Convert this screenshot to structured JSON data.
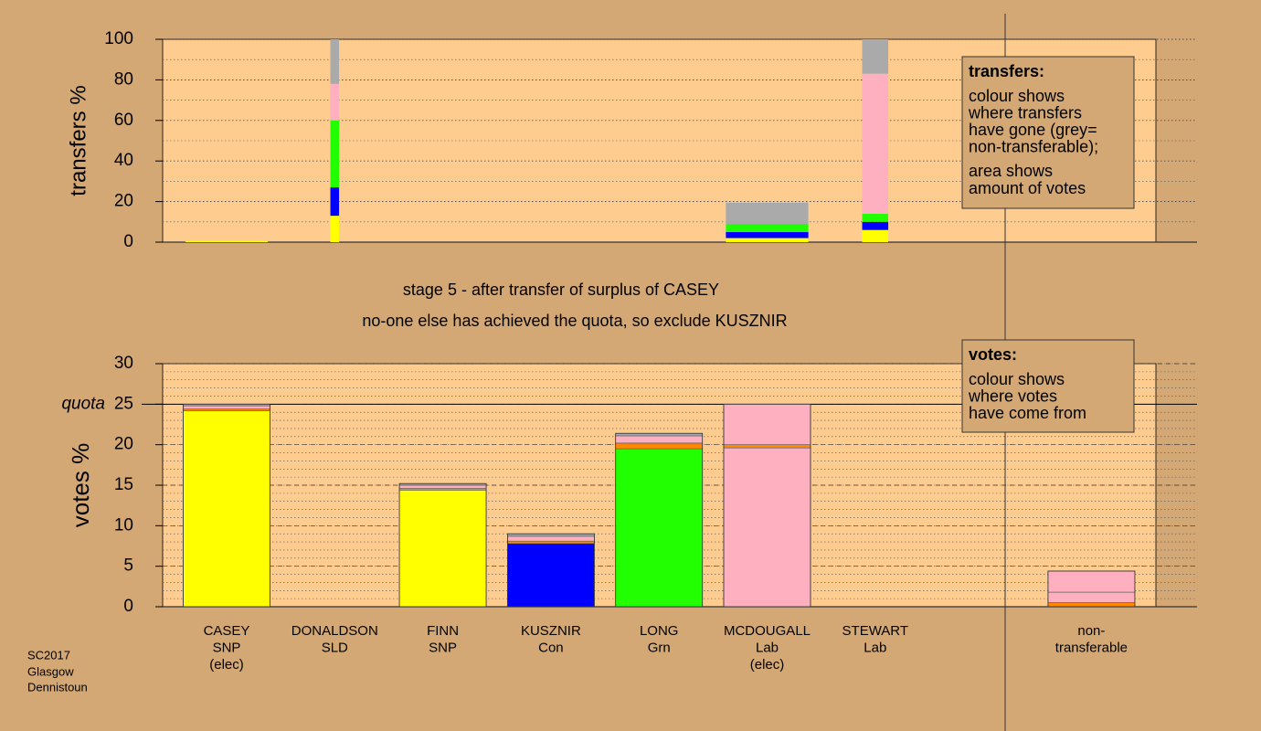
{
  "chart_data": [
    {
      "type": "stacked-bar",
      "ylabel": "transfers %",
      "ylim": [
        0,
        100
      ],
      "yticks": [
        0,
        20,
        40,
        60,
        80,
        100
      ],
      "grid_yticks": [
        0,
        10,
        20,
        30,
        40,
        50,
        60,
        70,
        80,
        90,
        100
      ],
      "widths": [
        0.95,
        0.1,
        0,
        0,
        0,
        0.95,
        0.3
      ],
      "segments": [
        [
          {
            "color": "#ffff00",
            "value": 0.5
          }
        ],
        [
          {
            "color": "#ffff00",
            "value": 13
          },
          {
            "color": "#0000ff",
            "value": 14
          },
          {
            "color": "#22ff00",
            "value": 33
          },
          {
            "color": "#ffb0c0",
            "value": 18
          },
          {
            "color": "#aaaaaa",
            "value": 22
          }
        ],
        [],
        [],
        [],
        [
          {
            "color": "#ffff00",
            "value": 2
          },
          {
            "color": "#0000ff",
            "value": 3
          },
          {
            "color": "#22ff00",
            "value": 4
          },
          {
            "color": "#aaaaaa",
            "value": 10.5
          }
        ],
        [
          {
            "color": "#ffff00",
            "value": 6
          },
          {
            "color": "#0000ff",
            "value": 4
          },
          {
            "color": "#22ff00",
            "value": 4
          },
          {
            "color": "#ffb0c0",
            "value": 69
          },
          {
            "color": "#aaaaaa",
            "value": 17
          }
        ]
      ],
      "note": {
        "title": "transfers:",
        "lines": [
          "colour shows",
          "where transfers",
          "have gone (grey=",
          "non-transferable);",
          "area shows",
          "amount of votes"
        ]
      }
    },
    {
      "type": "stacked-bar",
      "title": "stage 5 - after transfer of surplus of CASEY",
      "subtitle": "no-one else has achieved the quota, so exclude KUSZNIR",
      "ylabel": "votes %",
      "ylim": [
        0,
        30
      ],
      "yticks": [
        0,
        5,
        10,
        15,
        20,
        25,
        30
      ],
      "grid_yticks": [
        0,
        1,
        2,
        3,
        4,
        5,
        6,
        7,
        8,
        9,
        10,
        11,
        12,
        13,
        14,
        15,
        16,
        17,
        18,
        19,
        20,
        21,
        22,
        23,
        24,
        25,
        26,
        27,
        28,
        29,
        30
      ],
      "quota": {
        "value": 25,
        "label": "quota"
      },
      "categories": [
        [
          "CASEY",
          "SNP",
          "(elec)"
        ],
        [
          "DONALDSON",
          "SLD"
        ],
        [
          "FINN",
          "SNP"
        ],
        [
          "KUSZNIR",
          "Con"
        ],
        [
          "LONG",
          "Grn"
        ],
        [
          "MCDOUGALL",
          "Lab",
          "(elec)"
        ],
        [
          "STEWART",
          "Lab"
        ],
        null,
        [
          "non-",
          "transferable"
        ]
      ],
      "segments": [
        [
          {
            "color": "#ffff00",
            "value": 24.2
          },
          {
            "color": "#ff8800",
            "value": 0.2
          },
          {
            "color": "#ffb0c0",
            "value": 0.4
          },
          {
            "color": "#aaaaaa",
            "value": 0.2
          }
        ],
        [],
        [
          {
            "color": "#ffff00",
            "value": 14.4
          },
          {
            "color": "#ff8800",
            "value": 0.2
          },
          {
            "color": "#ffb0c0",
            "value": 0.4
          },
          {
            "color": "#aaaaaa",
            "value": 0.2
          }
        ],
        [
          {
            "color": "#0000ff",
            "value": 7.8
          },
          {
            "color": "#ff8800",
            "value": 0.3
          },
          {
            "color": "#ffb0c0",
            "value": 0.6
          },
          {
            "color": "#aaaaaa",
            "value": 0.3
          }
        ],
        [
          {
            "color": "#22ff00",
            "value": 19.5
          },
          {
            "color": "#ff8800",
            "value": 0.7
          },
          {
            "color": "#ffb0c0",
            "value": 0.9
          },
          {
            "color": "#aaaaaa",
            "value": 0.3
          }
        ],
        [
          {
            "color": "#ffb0c0",
            "value": 19.6
          },
          {
            "color": "#ff8800",
            "value": 0.4
          },
          {
            "color": "#ffb0c0",
            "value": 5.0
          }
        ],
        [],
        [],
        [
          {
            "color": "#ff8800",
            "value": 0.5
          },
          {
            "color": "#ffb0c0",
            "value": 1.3
          },
          {
            "color": "#ffb0c0",
            "value": 2.6
          }
        ]
      ],
      "note": {
        "title": "votes:",
        "lines": [
          "colour shows",
          "where votes",
          "have come from"
        ]
      }
    }
  ],
  "footer": [
    "SC2017",
    "Glasgow",
    "Dennistoun"
  ]
}
